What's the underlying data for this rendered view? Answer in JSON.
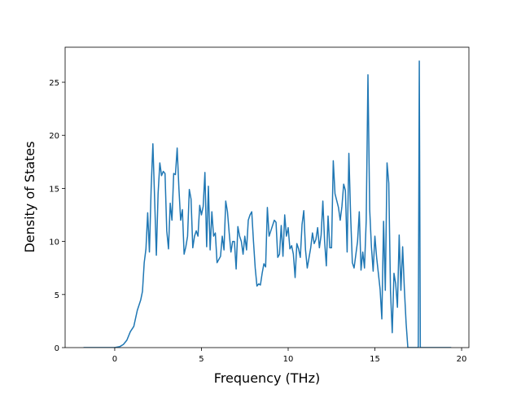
{
  "chart_data": {
    "type": "line",
    "x_label": "Frequency (THz)",
    "y_label": "Density of States",
    "x": [
      -1.8,
      -1,
      0,
      0.3,
      0.5,
      0.7,
      0.9,
      1.1,
      1.3,
      1.5,
      1.6,
      1.7,
      1.8,
      1.9,
      2.0,
      2.1,
      2.2,
      2.3,
      2.4,
      2.5,
      2.6,
      2.7,
      2.8,
      2.9,
      3.0,
      3.1,
      3.2,
      3.3,
      3.4,
      3.5,
      3.6,
      3.7,
      3.8,
      3.9,
      4.0,
      4.1,
      4.2,
      4.3,
      4.4,
      4.5,
      4.6,
      4.7,
      4.8,
      4.9,
      5.0,
      5.1,
      5.2,
      5.3,
      5.4,
      5.5,
      5.6,
      5.7,
      5.8,
      5.9,
      6.1,
      6.2,
      6.3,
      6.4,
      6.5,
      6.6,
      6.7,
      6.8,
      6.9,
      7.0,
      7.1,
      7.2,
      7.3,
      7.4,
      7.5,
      7.6,
      7.7,
      7.8,
      7.9,
      8.0,
      8.1,
      8.2,
      8.3,
      8.4,
      8.5,
      8.6,
      8.7,
      8.8,
      8.9,
      9.0,
      9.2,
      9.3,
      9.4,
      9.5,
      9.6,
      9.7,
      9.8,
      9.9,
      10.0,
      10.1,
      10.2,
      10.3,
      10.4,
      10.5,
      10.6,
      10.7,
      10.8,
      10.9,
      11.0,
      11.1,
      11.3,
      11.4,
      11.5,
      11.6,
      11.7,
      11.8,
      11.9,
      12.0,
      12.1,
      12.2,
      12.3,
      12.4,
      12.5,
      12.6,
      12.7,
      12.9,
      13.0,
      13.1,
      13.2,
      13.3,
      13.4,
      13.5,
      13.6,
      13.7,
      13.8,
      14.0,
      14.1,
      14.2,
      14.3,
      14.4,
      14.5,
      14.6,
      14.7,
      14.8,
      14.9,
      15.0,
      15.1,
      15.2,
      15.3,
      15.4,
      15.5,
      15.6,
      15.7,
      15.8,
      15.9,
      16.0,
      16.1,
      16.2,
      16.3,
      16.4,
      16.5,
      16.6,
      16.7,
      16.8,
      16.9,
      17.5,
      17.56,
      17.62,
      19.4
    ],
    "series": [
      {
        "color": "#1f77b4",
        "values": [
          0,
          0,
          0,
          0.1,
          0.3,
          0.7,
          1.5,
          2.0,
          3.5,
          4.5,
          5.3,
          8,
          9.3,
          12.7,
          9.0,
          15,
          19.2,
          14,
          8.7,
          14.5,
          17.4,
          16.2,
          16.6,
          16.4,
          11,
          9.3,
          13.6,
          12,
          16.4,
          16.3,
          18.8,
          15,
          12,
          13,
          8.8,
          9.5,
          10.5,
          14.9,
          14,
          9.4,
          10.5,
          11,
          10.5,
          13.4,
          12.5,
          13.3,
          16.5,
          9.5,
          15.2,
          9.2,
          12.8,
          10.5,
          10.8,
          8.0,
          8.6,
          10.5,
          9.2,
          13.8,
          12.8,
          10.8,
          9.0,
          10,
          10,
          7.4,
          11.4,
          10.5,
          10,
          8.8,
          10.5,
          9.2,
          12,
          12.5,
          12.8,
          10,
          7.5,
          5.8,
          6.0,
          5.9,
          7.0,
          7.9,
          7.6,
          13.2,
          10.5,
          11,
          12,
          11.8,
          8.5,
          8.8,
          11.5,
          8.6,
          12.5,
          10.5,
          11.3,
          9.3,
          9.6,
          8.8,
          6.6,
          9.8,
          9.3,
          8.5,
          11.6,
          12.9,
          9.2,
          7.5,
          9.4,
          10.8,
          9.8,
          10.2,
          11.3,
          9.4,
          10.6,
          13.8,
          10,
          7.7,
          12.4,
          9.4,
          9.4,
          17.6,
          14.5,
          13.2,
          12,
          13.3,
          15.4,
          14.8,
          9,
          18.3,
          12.5,
          8,
          7.5,
          10,
          12.8,
          7.3,
          9,
          7.5,
          12,
          25.7,
          13,
          9.5,
          7.2,
          10.5,
          8.5,
          7,
          5.5,
          2.7,
          11.9,
          5.4,
          17.4,
          15.5,
          5.3,
          1.4,
          7,
          6,
          3.8,
          10.6,
          5.4,
          9.5,
          5.5,
          2.3,
          0,
          0,
          27,
          0,
          0
        ]
      }
    ],
    "xlim": [
      -2.86,
      20.42
    ],
    "ylim": [
      0,
      28.3
    ],
    "xticks": [
      0,
      5,
      10,
      15,
      20
    ],
    "yticks": [
      0,
      5,
      10,
      15,
      20,
      25
    ]
  }
}
